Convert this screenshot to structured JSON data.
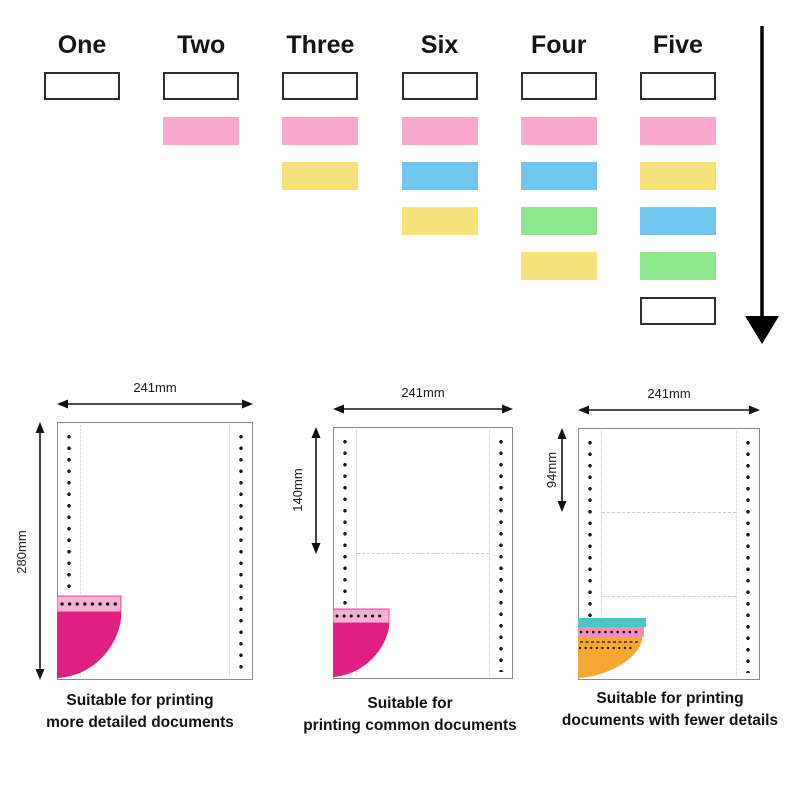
{
  "chart": {
    "columns": [
      {
        "label": "One",
        "layers": [
          "white"
        ]
      },
      {
        "label": "Two",
        "layers": [
          "white",
          "pink"
        ]
      },
      {
        "label": "Three",
        "layers": [
          "white",
          "pink",
          "yellow"
        ]
      },
      {
        "label": "Six",
        "layers": [
          "white",
          "pink",
          "blue",
          "yellow"
        ]
      },
      {
        "label": "Four",
        "layers": [
          "white",
          "pink",
          "blue",
          "green",
          "yellow"
        ]
      },
      {
        "label": "Five",
        "layers": [
          "white",
          "pink",
          "yellow",
          "blue",
          "green",
          "white"
        ]
      }
    ],
    "palette": {
      "white": "#ffffff",
      "pink": "#f9a8cf",
      "yellow": "#f9e27c",
      "blue": "#6fc6ee",
      "green": "#8de88d"
    }
  },
  "figure_colors": {
    "magenta": "#e01f84",
    "light_pink": "#f7b0d3",
    "pink_sheet": "#f48fb1",
    "orange": "#f6a832",
    "teal": "#45c8c8",
    "arrow": "#111111",
    "dot": "#1b1b1b",
    "paper_border": "#8a8a8a"
  },
  "papers": [
    {
      "width_label": "241mm",
      "height_label": "280mm",
      "caption_line1": "Suitable for printing",
      "caption_line2": "more detailed documents"
    },
    {
      "width_label": "241mm",
      "height_label": "140mm",
      "caption_line1": "Suitable for",
      "caption_line2": "printing common documents"
    },
    {
      "width_label": "241mm",
      "height_label": "94mm",
      "caption_line1": "Suitable for printing",
      "caption_line2": "documents with fewer details"
    }
  ]
}
